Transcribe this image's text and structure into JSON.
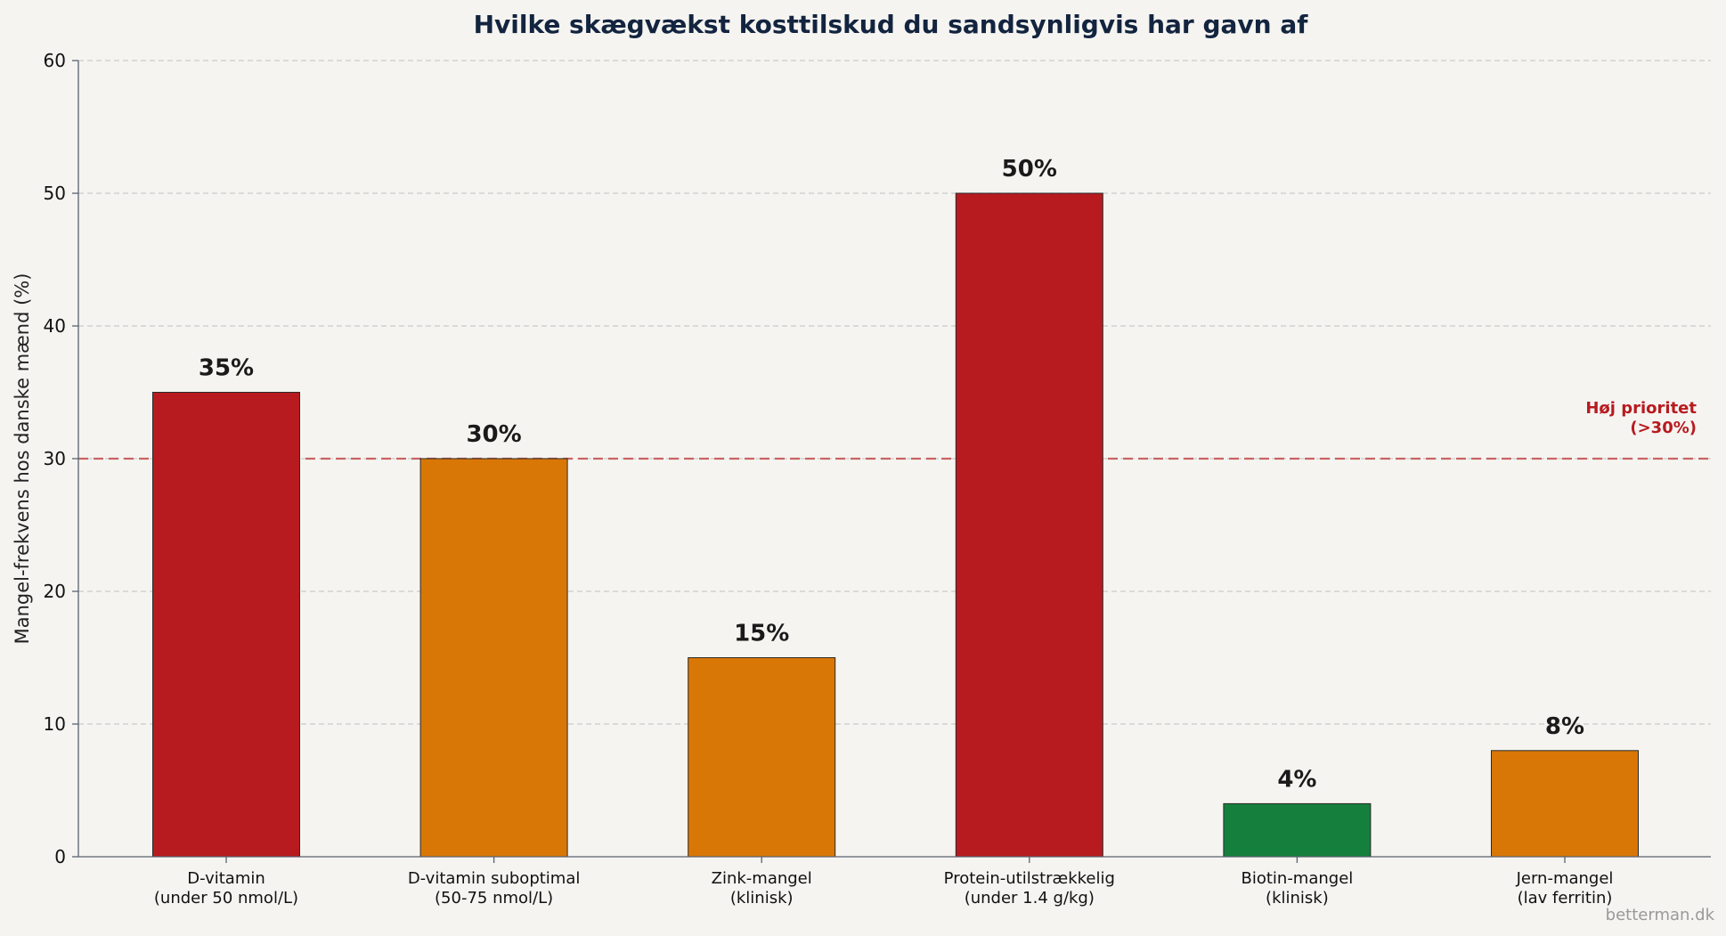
{
  "chart_data": {
    "type": "bar",
    "title": "Hvilke skægvækst kosttilskud du sandsynligvis har gavn af",
    "xlabel": "",
    "ylabel": "Mangel-frekvens hos danske mænd (%)",
    "ylim": [
      0,
      60
    ],
    "yticks": [
      "0",
      "10",
      "20",
      "30",
      "40",
      "50",
      "60"
    ],
    "grid": "horizontal-dashed",
    "categories": [
      [
        "D-vitamin",
        "(under 50 nmol/L)"
      ],
      [
        "D-vitamin suboptimal",
        "(50-75 nmol/L)"
      ],
      [
        "Zink-mangel",
        "(klinisk)"
      ],
      [
        "Protein-utilstrækkelig",
        "(under 1.4 g/kg)"
      ],
      [
        "Biotin-mangel",
        "(klinisk)"
      ],
      [
        "Jern-mangel",
        "(lav ferritin)"
      ]
    ],
    "values": [
      35,
      30,
      15,
      50,
      4,
      8
    ],
    "data_labels": [
      "35%",
      "30%",
      "15%",
      "50%",
      "4%",
      "8%"
    ],
    "bar_colors": [
      "#b71b1f",
      "#d97706",
      "#d97706",
      "#b71b1f",
      "#15803d",
      "#d97706"
    ],
    "threshold": {
      "value": 30,
      "color": "#c96464",
      "label_lines": [
        "Høj prioritet",
        "(>30%)"
      ]
    }
  },
  "watermark": "betterman.dk"
}
